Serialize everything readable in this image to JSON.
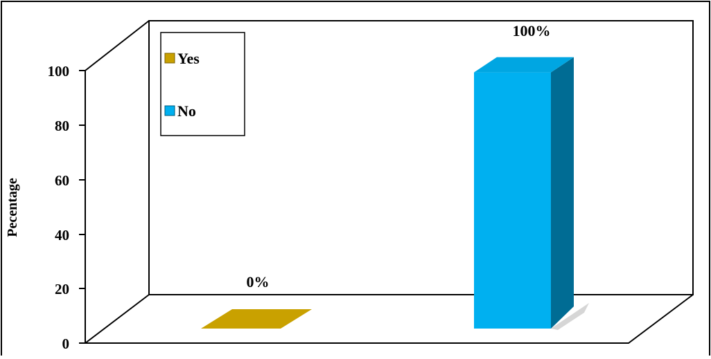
{
  "chart_data": {
    "type": "bar",
    "categories": [
      "Yes",
      "No"
    ],
    "values": [
      0,
      100
    ],
    "data_labels": [
      "0%",
      "100%"
    ],
    "title": "",
    "xlabel": "",
    "ylabel": "Pecentage",
    "ylim": [
      0,
      100
    ],
    "yticks": [
      "0",
      "20",
      "40",
      "60",
      "80",
      "100"
    ],
    "three_d": true,
    "grid": false,
    "legend_position": "top-left",
    "legend": [
      {
        "label": "Yes",
        "color": "#C9A100"
      },
      {
        "label": "No",
        "color": "#00B0F0"
      }
    ],
    "colors": {
      "yes_front": "#C9A100",
      "no_front": "#00B0F0",
      "no_side": "#006C94",
      "no_top": "#00A6E2"
    }
  }
}
